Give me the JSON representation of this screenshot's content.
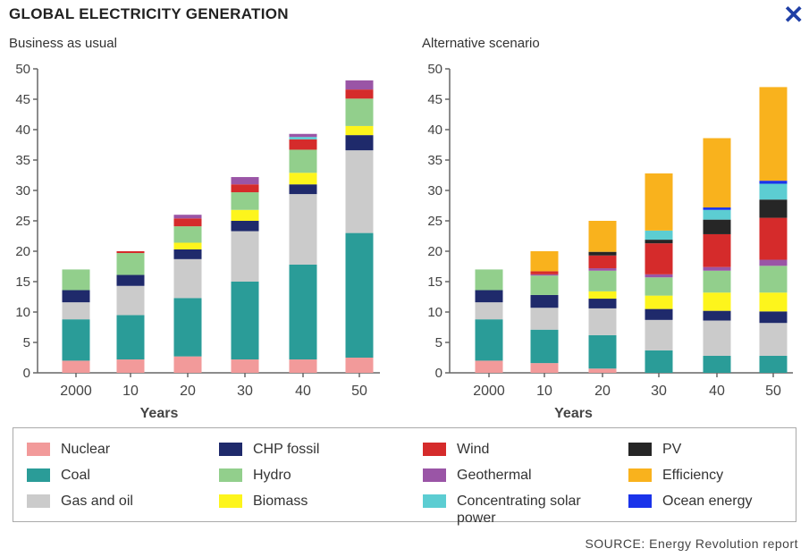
{
  "header": {
    "title": "GLOBAL ELECTRICITY GENERATION",
    "close_glyph": "✕",
    "close_icon": "close-icon"
  },
  "colors": {
    "Nuclear": "#f29a9a",
    "Coal": "#2a9c98",
    "Gas and oil": "#cbcbcb",
    "CHP fossil": "#1f2a6b",
    "Hydro": "#92cf8c",
    "Biomass": "#fdf51c",
    "Wind": "#d52b2b",
    "Geothermal": "#9a55a6",
    "Concentrating solar power": "#5ccdd2",
    "PV": "#262626",
    "Efficiency": "#f9b21d",
    "Ocean energy": "#1a33ea"
  },
  "chart_data": [
    {
      "type": "bar",
      "stacked": true,
      "title": "Business as usual",
      "xlabel": "Years",
      "ylabel": "",
      "ylim": [
        0,
        50
      ],
      "yticks": [
        0,
        5,
        10,
        15,
        20,
        25,
        30,
        35,
        40,
        45,
        50
      ],
      "categories": [
        "2000",
        "10",
        "20",
        "30",
        "40",
        "50"
      ],
      "series": [
        {
          "name": "Nuclear",
          "values": [
            2,
            2.2,
            2.7,
            2.2,
            2.2,
            2.5
          ]
        },
        {
          "name": "Coal",
          "values": [
            6.8,
            7.3,
            9.6,
            12.8,
            15.6,
            20.5
          ]
        },
        {
          "name": "Gas and oil",
          "values": [
            2.8,
            4.8,
            6.4,
            8.3,
            11.6,
            13.6
          ]
        },
        {
          "name": "CHP fossil",
          "values": [
            2,
            1.8,
            1.6,
            1.7,
            1.6,
            2.5
          ]
        },
        {
          "name": "Biomass",
          "values": [
            0,
            0,
            1.1,
            1.8,
            1.9,
            1.5
          ]
        },
        {
          "name": "Hydro",
          "values": [
            3.4,
            3.6,
            2.7,
            2.9,
            3.8,
            4.5
          ]
        },
        {
          "name": "Wind",
          "values": [
            0,
            0.3,
            1.3,
            1.3,
            1.7,
            1.5
          ]
        },
        {
          "name": "Concentrating solar power",
          "values": [
            0,
            0,
            0,
            0,
            0.4,
            0
          ]
        },
        {
          "name": "Geothermal",
          "values": [
            0,
            0,
            0.6,
            1.2,
            0.5,
            1.5
          ]
        }
      ]
    },
    {
      "type": "bar",
      "stacked": true,
      "title": "Alternative scenario",
      "xlabel": "Years",
      "ylabel": "",
      "ylim": [
        0,
        50
      ],
      "yticks": [
        0,
        5,
        10,
        15,
        20,
        25,
        30,
        35,
        40,
        45,
        50
      ],
      "categories": [
        "2000",
        "10",
        "20",
        "30",
        "40",
        "50"
      ],
      "series": [
        {
          "name": "Nuclear",
          "values": [
            2,
            1.6,
            0.7,
            0,
            0,
            0
          ]
        },
        {
          "name": "Coal",
          "values": [
            6.8,
            5.5,
            5.5,
            3.7,
            2.8,
            2.8
          ]
        },
        {
          "name": "Gas and oil",
          "values": [
            2.8,
            3.6,
            4.4,
            5,
            5.8,
            5.4
          ]
        },
        {
          "name": "CHP fossil",
          "values": [
            2,
            2.1,
            1.6,
            1.8,
            1.6,
            1.9
          ]
        },
        {
          "name": "Biomass",
          "values": [
            0,
            0,
            1.2,
            2.2,
            3,
            3.1
          ]
        },
        {
          "name": "Hydro",
          "values": [
            3.4,
            3.2,
            3.4,
            3,
            3.6,
            4.4
          ]
        },
        {
          "name": "Geothermal",
          "values": [
            0,
            0.2,
            0.4,
            0.5,
            0.6,
            1
          ]
        },
        {
          "name": "Wind",
          "values": [
            0,
            0.5,
            2.1,
            5.1,
            5.4,
            6.9
          ]
        },
        {
          "name": "PV",
          "values": [
            0,
            0,
            0.6,
            0.6,
            2.4,
            3
          ]
        },
        {
          "name": "Concentrating solar power",
          "values": [
            0,
            0,
            0,
            1.5,
            1.6,
            2.6
          ]
        },
        {
          "name": "Ocean energy",
          "values": [
            0,
            0,
            0,
            0,
            0.4,
            0.5
          ]
        },
        {
          "name": "Efficiency",
          "values": [
            0,
            3.3,
            5.1,
            9.4,
            11.4,
            15.4
          ]
        }
      ]
    }
  ],
  "legend": {
    "items": [
      {
        "name": "Nuclear",
        "label": "Nuclear",
        "icon": "nuclear-swatch"
      },
      {
        "name": "Coal",
        "label": "Coal",
        "icon": "coal-swatch"
      },
      {
        "name": "Gas and oil",
        "label": "Gas and oil",
        "icon": "gas-and-oil-swatch"
      },
      {
        "name": "CHP fossil",
        "label": "CHP fossil",
        "icon": "chp-fossil-swatch"
      },
      {
        "name": "Hydro",
        "label": "Hydro",
        "icon": "hydro-swatch"
      },
      {
        "name": "Biomass",
        "label": "Biomass",
        "icon": "biomass-swatch"
      },
      {
        "name": "Wind",
        "label": "Wind",
        "icon": "wind-swatch"
      },
      {
        "name": "Geothermal",
        "label": "Geothermal",
        "icon": "geothermal-swatch"
      },
      {
        "name": "Concentrating solar power",
        "label": "Concentrating solar power",
        "icon": "concentrating-solar-power-swatch"
      },
      {
        "name": "PV",
        "label": "PV",
        "icon": "pv-swatch"
      },
      {
        "name": "Efficiency",
        "label": "Efficiency",
        "icon": "efficiency-swatch"
      },
      {
        "name": "Ocean energy",
        "label": "Ocean energy",
        "icon": "ocean-energy-swatch"
      }
    ]
  },
  "footer": {
    "source": "SOURCE: Energy Revolution report"
  }
}
